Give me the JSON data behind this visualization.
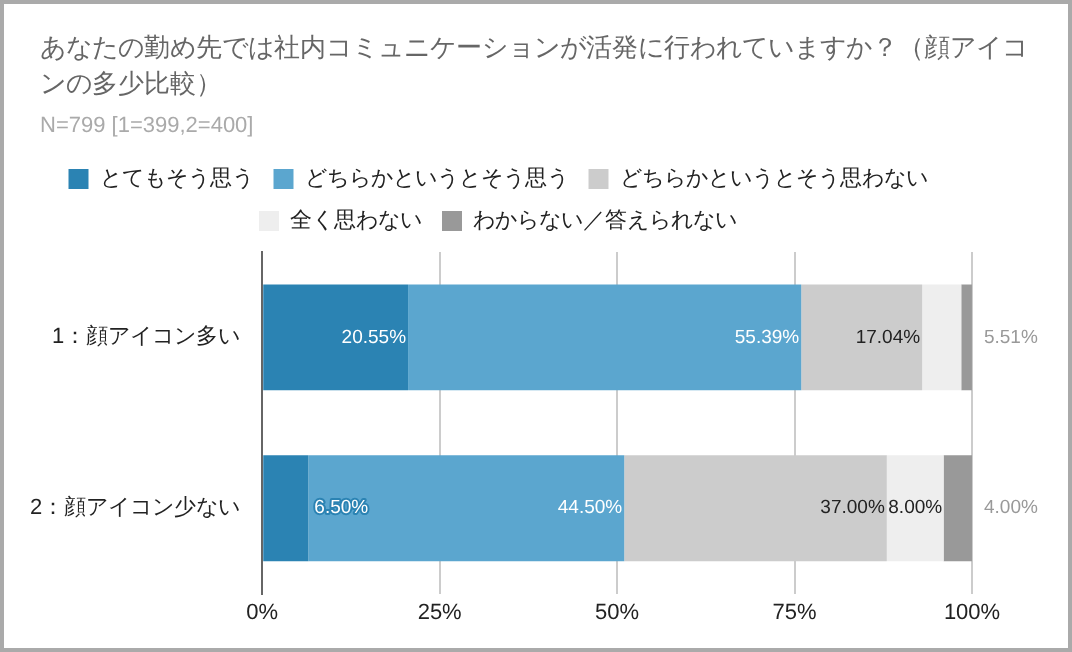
{
  "chart_data": {
    "type": "bar",
    "orientation": "horizontal",
    "stacked": true,
    "title": "あなたの勤め先では社内コミュニケーションが活発に行われていますか？（顔アイコンの多少比較）",
    "subtitle": "N=799 [1=399,2=400]",
    "categories": [
      "1：顔アイコン多い",
      "2：顔アイコン少ない"
    ],
    "series": [
      {
        "name": "とてもそう思う",
        "color": "#2b83b3",
        "values": [
          20.55,
          6.5
        ],
        "value_labels": [
          "20.55%",
          "6.50%"
        ]
      },
      {
        "name": "どちらかというとそう思う",
        "color": "#5ba6cf",
        "values": [
          55.39,
          44.5
        ],
        "value_labels": [
          "55.39%",
          "44.50%"
        ]
      },
      {
        "name": "どちらかというとそう思わない",
        "color": "#cccccc",
        "values": [
          17.04,
          37.0
        ],
        "value_labels": [
          "17.04%",
          "37.00%"
        ]
      },
      {
        "name": "全く思わない",
        "color": "#eeeeee",
        "values": [
          5.51,
          8.0
        ],
        "value_labels": [
          "5.51%",
          "8.00%"
        ]
      },
      {
        "name": "わからない／答えられない",
        "color": "#999999",
        "values": [
          1.5,
          4.0
        ],
        "value_labels": [
          null,
          "4.00%"
        ]
      }
    ],
    "xlim": [
      0,
      100
    ],
    "xticks": [
      {
        "value": 0,
        "label": "0%"
      },
      {
        "value": 25,
        "label": "25%"
      },
      {
        "value": 50,
        "label": "50%"
      },
      {
        "value": 75,
        "label": "75%"
      },
      {
        "value": 100,
        "label": "100%"
      }
    ],
    "grid": "x",
    "legend": "top"
  }
}
